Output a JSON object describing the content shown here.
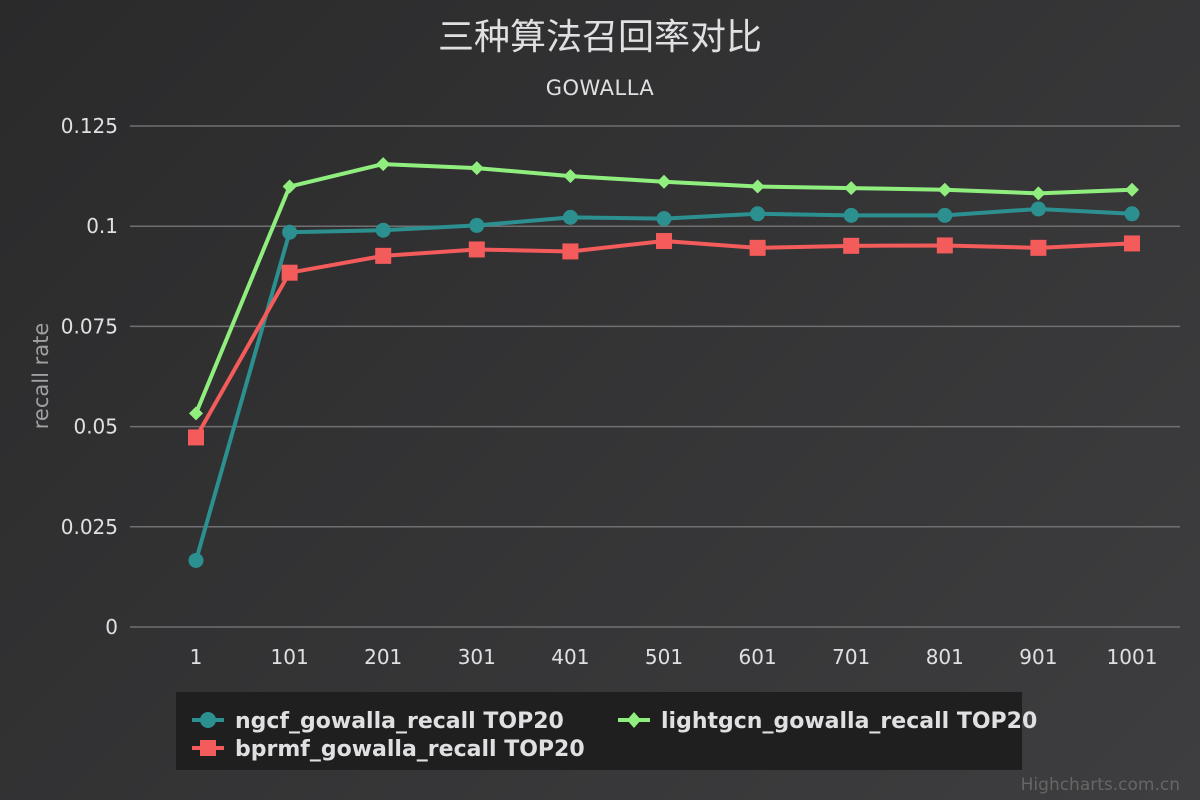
{
  "colors": {
    "background": "#2a2a2b",
    "grid": "#707073",
    "text": "#e0e0e3",
    "axis_title": "#a0a0a3",
    "legend_bg": "#1f1f1f",
    "credits": "#666666"
  },
  "credits": "Highcharts.com.cn",
  "chart_data": {
    "type": "line",
    "title": "三种算法召回率对比",
    "subtitle": "GOWALLA",
    "xlabel": "",
    "ylabel": "recall rate",
    "categories": [
      "1",
      "101",
      "201",
      "301",
      "401",
      "501",
      "601",
      "701",
      "801",
      "901",
      "1001"
    ],
    "yticks": [
      "0",
      "0.025",
      "0.05",
      "0.075",
      "0.1",
      "0.125"
    ],
    "ylim": [
      0,
      0.125
    ],
    "grid": true,
    "legend_position": "bottom",
    "series": [
      {
        "name": "ngcf_gowalla_recall TOP20",
        "color": "#2b908f",
        "marker": "circle",
        "values": [
          0.0166,
          0.0985,
          0.099,
          0.1002,
          0.1022,
          0.1019,
          0.1031,
          0.1027,
          0.1027,
          0.1043,
          0.1031
        ]
      },
      {
        "name": "lightgcn_gowalla_recall TOP20",
        "color": "#90ee7e",
        "marker": "diamond",
        "values": [
          0.0533,
          0.1099,
          0.1155,
          0.1145,
          0.1125,
          0.1111,
          0.1099,
          0.1095,
          0.1091,
          0.1082,
          0.1091
        ]
      },
      {
        "name": "bprmf_gowalla_recall TOP20",
        "color": "#f45b5b",
        "marker": "square",
        "values": [
          0.0473,
          0.0884,
          0.0926,
          0.0942,
          0.0937,
          0.0963,
          0.0946,
          0.0951,
          0.0952,
          0.0946,
          0.0957
        ]
      }
    ]
  }
}
